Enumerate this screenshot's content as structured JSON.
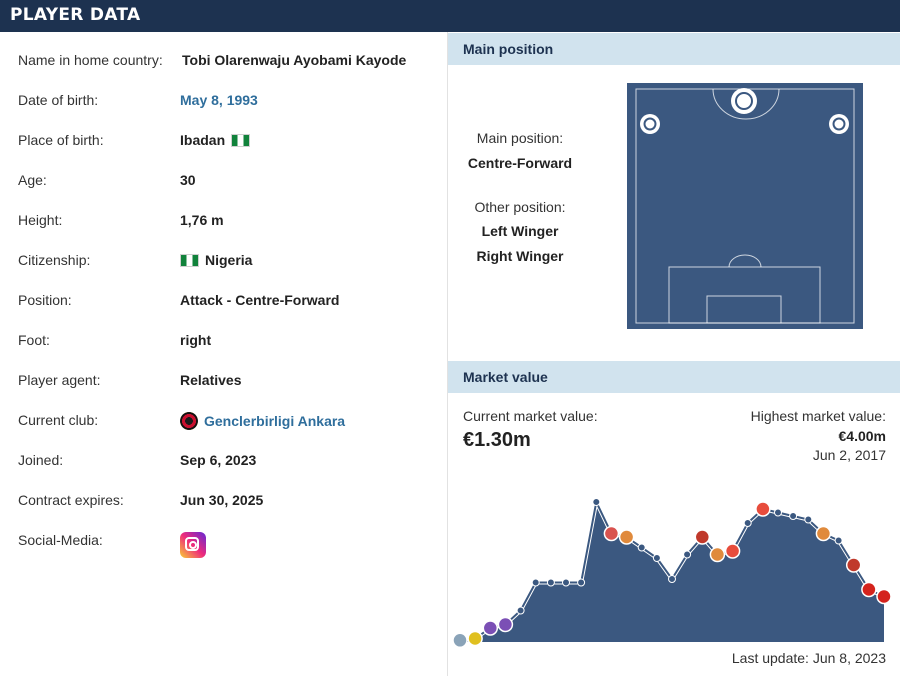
{
  "header": {
    "title": "PLAYER DATA"
  },
  "player_info": [
    {
      "label": "Name in home country:",
      "value": "Tobi Olarenwaju Ayobami Kayode",
      "style": "bold"
    },
    {
      "label": "Date of birth:",
      "value": "May 8, 1993",
      "style": "link"
    },
    {
      "label": "Place of birth:",
      "value": "Ibadan",
      "style": "bold",
      "icon": "nigeria-flag-icon"
    },
    {
      "label": "Age:",
      "value": "30",
      "style": "bold"
    },
    {
      "label": "Height:",
      "value": "1,76 m",
      "style": "bold"
    },
    {
      "label": "Citizenship:",
      "value": "Nigeria",
      "style": "bold",
      "icon": "nigeria-flag-icon"
    },
    {
      "label": "Position:",
      "value": "Attack - Centre-Forward",
      "style": "bold"
    },
    {
      "label": "Foot:",
      "value": "right",
      "style": "bold"
    },
    {
      "label": "Player agent:",
      "value": "Relatives",
      "style": "bold"
    },
    {
      "label": "Current club:",
      "value": "Genclerbirligi Ankara",
      "style": "link",
      "icon": "club-crest-icon"
    },
    {
      "label": "Joined:",
      "value": "Sep 6, 2023",
      "style": "bold"
    },
    {
      "label": "Contract expires:",
      "value": "Jun 30, 2025",
      "style": "bold"
    },
    {
      "label": "Social-Media:",
      "value": "",
      "style": "bold",
      "icon": "instagram-icon"
    }
  ],
  "main_position": {
    "heading": "Main position",
    "main_label": "Main position:",
    "main_value": "Centre-Forward",
    "other_label": "Other position:",
    "other_values": [
      "Left Winger",
      "Right Winger"
    ],
    "pitch_color": "#3b5880"
  },
  "market_value": {
    "heading": "Market value",
    "current_label": "Current market value:",
    "current_value": "€1.30m",
    "highest_label": "Highest market value:",
    "highest_value": "€4.00m",
    "highest_date": "Jun 2, 2017",
    "last_update": "Last update: Jun 8, 2023"
  },
  "chart_data": {
    "type": "area",
    "fill_color": "#3b5880",
    "line_color": "#3b5880",
    "ylim": [
      0,
      4.4
    ],
    "values": [
      0.05,
      0.1,
      0.4,
      0.5,
      0.9,
      1.7,
      1.7,
      1.7,
      1.7,
      4.0,
      3.1,
      3.0,
      2.7,
      2.4,
      1.8,
      2.5,
      3.0,
      2.5,
      2.6,
      3.4,
      3.8,
      3.7,
      3.6,
      3.5,
      3.1,
      2.9,
      2.2,
      1.5,
      1.3
    ],
    "club_markers": [
      0,
      1,
      2,
      3,
      10,
      11,
      16,
      17,
      18,
      20,
      24,
      26,
      27,
      28
    ]
  },
  "colors": {
    "brand_dark": "#1d3250",
    "section_head": "#d1e3ee",
    "link": "#2f6e9c"
  }
}
